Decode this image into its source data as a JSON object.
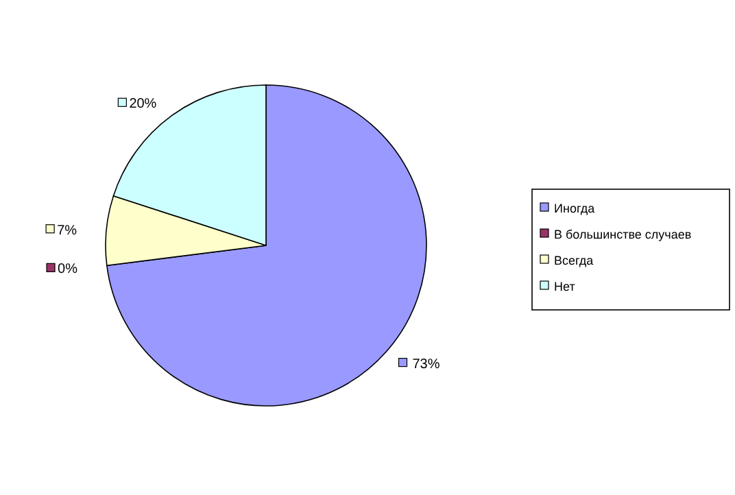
{
  "chart_data": {
    "type": "pie",
    "categories": [
      "Иногда",
      "В большинстве случаев",
      "Всегда",
      "Нет"
    ],
    "values": [
      73,
      0,
      7,
      20
    ],
    "colors": [
      "#9999ff",
      "#993366",
      "#ffffcc",
      "#ccffff"
    ],
    "value_labels": [
      "73%",
      "0%",
      "7%",
      "20%"
    ],
    "legend": "right"
  }
}
